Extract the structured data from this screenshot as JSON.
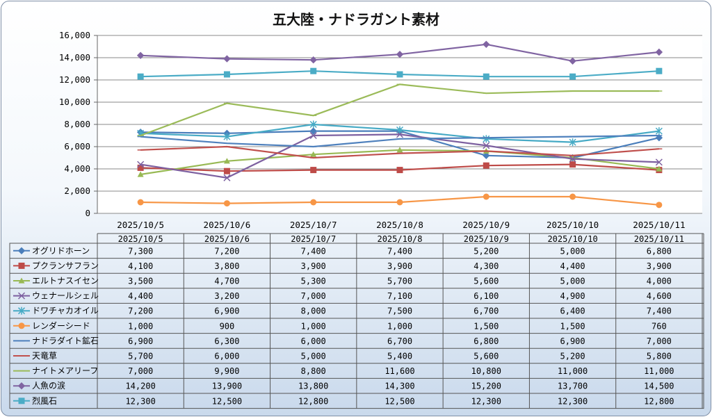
{
  "chart_data": {
    "type": "line",
    "title": "五大陸・ナドラガント素材",
    "categories": [
      "2025/10/5",
      "2025/10/6",
      "2025/10/7",
      "2025/10/8",
      "2025/10/9",
      "2025/10/10",
      "2025/10/11"
    ],
    "ylim": [
      0,
      16000
    ],
    "yticks": [
      "0",
      "2,000",
      "4,000",
      "6,000",
      "8,000",
      "10,000",
      "12,000",
      "14,000",
      "16,000"
    ],
    "ytick_values": [
      0,
      2000,
      4000,
      6000,
      8000,
      10000,
      12000,
      14000,
      16000
    ],
    "grid": true,
    "legend": "data-table",
    "series": [
      {
        "name": "オグリドホーン",
        "color": "#4a7ebb",
        "marker": "diamond",
        "values": [
          7300,
          7200,
          7400,
          7400,
          5200,
          5000,
          6800
        ],
        "labels": [
          "7,300",
          "7,200",
          "7,400",
          "7,400",
          "5,200",
          "5,000",
          "6,800"
        ]
      },
      {
        "name": "プクランサフラン",
        "color": "#be4b48",
        "marker": "square",
        "values": [
          4100,
          3800,
          3900,
          3900,
          4300,
          4400,
          3900
        ],
        "labels": [
          "4,100",
          "3,800",
          "3,900",
          "3,900",
          "4,300",
          "4,400",
          "3,900"
        ]
      },
      {
        "name": "エルトナスイセン",
        "color": "#98b954",
        "marker": "triangle",
        "values": [
          3500,
          4700,
          5300,
          5700,
          5600,
          5000,
          4000
        ],
        "labels": [
          "3,500",
          "4,700",
          "5,300",
          "5,700",
          "5,600",
          "5,000",
          "4,000"
        ]
      },
      {
        "name": "ウェナールシェル",
        "color": "#7d60a0",
        "marker": "x",
        "values": [
          4400,
          3200,
          7000,
          7100,
          6100,
          4900,
          4600
        ],
        "labels": [
          "4,400",
          "3,200",
          "7,000",
          "7,100",
          "6,100",
          "4,900",
          "4,600"
        ]
      },
      {
        "name": "ドワチャカオイル",
        "color": "#46aac5",
        "marker": "star",
        "values": [
          7200,
          6900,
          8000,
          7500,
          6700,
          6400,
          7400
        ],
        "labels": [
          "7,200",
          "6,900",
          "8,000",
          "7,500",
          "6,700",
          "6,400",
          "7,400"
        ]
      },
      {
        "name": "レンダーシード",
        "color": "#f79646",
        "marker": "circle",
        "values": [
          1000,
          900,
          1000,
          1000,
          1500,
          1500,
          760
        ],
        "labels": [
          "1,000",
          "900",
          "1,000",
          "1,000",
          "1,500",
          "1,500",
          "760"
        ]
      },
      {
        "name": "ナドラダイト鉱石",
        "color": "#4f81bd",
        "marker": "plus",
        "values": [
          6900,
          6300,
          6000,
          6700,
          6800,
          6900,
          7000
        ],
        "labels": [
          "6,900",
          "6,300",
          "6,000",
          "6,700",
          "6,800",
          "6,900",
          "7,000"
        ]
      },
      {
        "name": "天竜草",
        "color": "#c0504d",
        "marker": "dash",
        "values": [
          5700,
          6000,
          5000,
          5400,
          5600,
          5200,
          5800
        ],
        "labels": [
          "5,700",
          "6,000",
          "5,000",
          "5,400",
          "5,600",
          "5,200",
          "5,800"
        ]
      },
      {
        "name": "ナイトメアリーフ",
        "color": "#9bbb59",
        "marker": "dash",
        "values": [
          7000,
          9900,
          8800,
          11600,
          10800,
          11000,
          11000
        ],
        "labels": [
          "7,000",
          "9,900",
          "8,800",
          "11,600",
          "10,800",
          "11,000",
          "11,000"
        ]
      },
      {
        "name": "人魚の涙",
        "color": "#8064a2",
        "marker": "diamond",
        "values": [
          14200,
          13900,
          13800,
          14300,
          15200,
          13700,
          14500
        ],
        "labels": [
          "14,200",
          "13,900",
          "13,800",
          "14,300",
          "15,200",
          "13,700",
          "14,500"
        ]
      },
      {
        "name": "烈風石",
        "color": "#4bacc6",
        "marker": "square",
        "values": [
          12300,
          12500,
          12800,
          12500,
          12300,
          12300,
          12800
        ],
        "labels": [
          "12,300",
          "12,500",
          "12,800",
          "12,500",
          "12,300",
          "12,300",
          "12,800"
        ]
      }
    ]
  }
}
